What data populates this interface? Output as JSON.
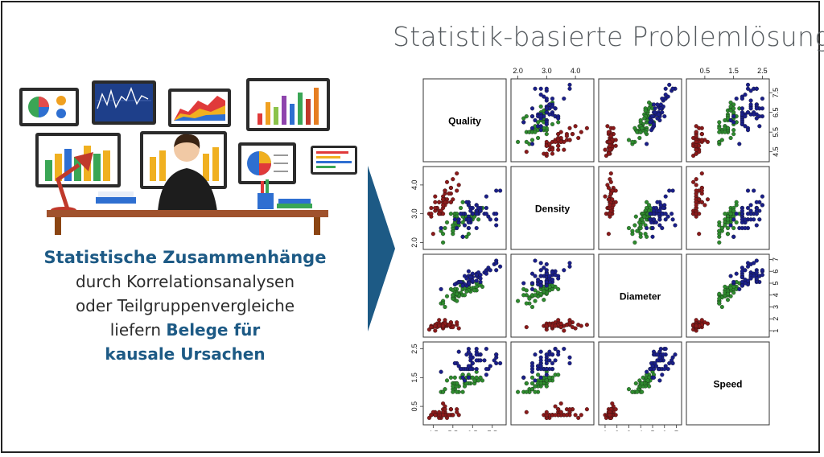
{
  "title": "Statistik-basierte Problemlösung",
  "left_text": {
    "line1": "Statistische Zusammenhänge",
    "line2": "durch Korrelationsanalysen",
    "line3": "oder Teilgruppenvergleiche",
    "line4_plain": "liefern ",
    "line4_bold": "Belege für",
    "line5": "kausale Ursachen"
  },
  "colors": {
    "accent": "#1d5a85",
    "arrow": "#1d5a85",
    "group_red": "#8b1a1a",
    "group_green": "#2e8b2e",
    "group_blue": "#1a1f8a"
  },
  "icons": {
    "illustration": "analyst-with-monitors-icon",
    "arrow": "chevron-right-arrow-icon"
  },
  "chart_data": {
    "type": "scatter",
    "variables": [
      "Quality",
      "Density",
      "Diameter",
      "Speed"
    ],
    "axis_ticks": {
      "Quality": [
        "4.5",
        "5.5",
        "6.5",
        "7.5"
      ],
      "Density": [
        "2.0",
        "3.0",
        "4.0"
      ],
      "Diameter": [
        "1",
        "2",
        "3",
        "4",
        "5",
        "6",
        "7"
      ],
      "Speed": [
        "0.5",
        "1.5",
        "2.5"
      ]
    },
    "groups": [
      {
        "color": "#8b1a1a",
        "points": [
          [
            5.1,
            3.5,
            1.4,
            0.2
          ],
          [
            4.9,
            3.0,
            1.4,
            0.2
          ],
          [
            4.7,
            3.2,
            1.3,
            0.2
          ],
          [
            4.6,
            3.1,
            1.5,
            0.2
          ],
          [
            5.0,
            3.6,
            1.4,
            0.2
          ],
          [
            5.4,
            3.9,
            1.7,
            0.4
          ],
          [
            4.6,
            3.4,
            1.4,
            0.3
          ],
          [
            5.0,
            3.4,
            1.5,
            0.2
          ],
          [
            4.4,
            2.9,
            1.4,
            0.2
          ],
          [
            4.9,
            3.1,
            1.5,
            0.1
          ],
          [
            5.4,
            3.7,
            1.5,
            0.2
          ],
          [
            4.8,
            3.4,
            1.6,
            0.2
          ],
          [
            4.8,
            3.0,
            1.4,
            0.1
          ],
          [
            4.3,
            3.0,
            1.1,
            0.1
          ],
          [
            5.8,
            4.0,
            1.2,
            0.2
          ],
          [
            5.7,
            4.4,
            1.5,
            0.4
          ],
          [
            5.4,
            3.9,
            1.3,
            0.4
          ],
          [
            5.1,
            3.5,
            1.4,
            0.3
          ],
          [
            5.7,
            3.8,
            1.7,
            0.3
          ],
          [
            5.1,
            3.8,
            1.5,
            0.3
          ],
          [
            5.4,
            3.4,
            1.7,
            0.2
          ],
          [
            5.1,
            3.7,
            1.5,
            0.4
          ],
          [
            4.6,
            3.6,
            1.0,
            0.2
          ],
          [
            5.1,
            3.3,
            1.7,
            0.5
          ],
          [
            4.8,
            3.4,
            1.9,
            0.2
          ],
          [
            5.0,
            3.0,
            1.6,
            0.2
          ],
          [
            5.0,
            3.4,
            1.6,
            0.4
          ],
          [
            5.2,
            3.5,
            1.5,
            0.2
          ],
          [
            5.2,
            3.4,
            1.4,
            0.2
          ],
          [
            4.7,
            3.2,
            1.6,
            0.2
          ],
          [
            4.8,
            3.1,
            1.6,
            0.2
          ],
          [
            5.4,
            3.4,
            1.5,
            0.4
          ],
          [
            5.2,
            4.1,
            1.5,
            0.1
          ],
          [
            5.5,
            4.2,
            1.4,
            0.2
          ],
          [
            4.9,
            3.1,
            1.5,
            0.2
          ],
          [
            5.0,
            3.2,
            1.2,
            0.2
          ],
          [
            5.5,
            3.5,
            1.3,
            0.2
          ],
          [
            4.4,
            3.0,
            1.3,
            0.2
          ],
          [
            5.1,
            3.4,
            1.5,
            0.2
          ],
          [
            5.0,
            3.5,
            1.3,
            0.3
          ],
          [
            4.5,
            2.3,
            1.3,
            0.3
          ],
          [
            4.4,
            3.2,
            1.3,
            0.2
          ],
          [
            5.0,
            3.5,
            1.6,
            0.6
          ],
          [
            5.1,
            3.8,
            1.9,
            0.4
          ],
          [
            4.8,
            3.0,
            1.4,
            0.3
          ],
          [
            5.1,
            3.8,
            1.6,
            0.2
          ],
          [
            4.6,
            3.2,
            1.4,
            0.2
          ],
          [
            5.3,
            3.7,
            1.5,
            0.2
          ],
          [
            5.0,
            3.3,
            1.4,
            0.2
          ]
        ]
      },
      {
        "color": "#2e8b2e",
        "points": [
          [
            7.0,
            3.2,
            4.7,
            1.4
          ],
          [
            6.4,
            3.2,
            4.5,
            1.5
          ],
          [
            6.9,
            3.1,
            4.9,
            1.5
          ],
          [
            5.5,
            2.3,
            4.0,
            1.3
          ],
          [
            6.5,
            2.8,
            4.6,
            1.5
          ],
          [
            5.7,
            2.8,
            4.5,
            1.3
          ],
          [
            6.3,
            3.3,
            4.7,
            1.6
          ],
          [
            4.9,
            2.4,
            3.3,
            1.0
          ],
          [
            6.6,
            2.9,
            4.6,
            1.3
          ],
          [
            5.2,
            2.7,
            3.9,
            1.4
          ],
          [
            5.0,
            2.0,
            3.5,
            1.0
          ],
          [
            5.9,
            3.0,
            4.2,
            1.5
          ],
          [
            6.0,
            2.2,
            4.0,
            1.0
          ],
          [
            6.1,
            2.9,
            4.7,
            1.4
          ],
          [
            5.6,
            2.9,
            3.6,
            1.3
          ],
          [
            6.7,
            3.1,
            4.4,
            1.4
          ],
          [
            5.6,
            3.0,
            4.5,
            1.5
          ],
          [
            5.8,
            2.7,
            4.1,
            1.0
          ],
          [
            6.2,
            2.2,
            4.5,
            1.5
          ],
          [
            5.6,
            2.5,
            3.9,
            1.1
          ],
          [
            5.9,
            3.2,
            4.8,
            1.8
          ],
          [
            6.1,
            2.8,
            4.0,
            1.3
          ],
          [
            6.3,
            2.5,
            4.9,
            1.5
          ],
          [
            6.1,
            2.8,
            4.7,
            1.2
          ],
          [
            6.4,
            2.9,
            4.3,
            1.3
          ],
          [
            6.6,
            3.0,
            4.4,
            1.4
          ],
          [
            6.8,
            2.8,
            4.8,
            1.4
          ],
          [
            6.7,
            3.0,
            5.0,
            1.7
          ],
          [
            6.0,
            2.9,
            4.5,
            1.5
          ],
          [
            5.7,
            2.6,
            3.5,
            1.0
          ],
          [
            5.5,
            2.4,
            3.8,
            1.1
          ],
          [
            5.5,
            2.4,
            3.7,
            1.0
          ],
          [
            5.8,
            2.7,
            3.9,
            1.2
          ],
          [
            6.0,
            2.7,
            5.1,
            1.6
          ],
          [
            5.4,
            3.0,
            4.5,
            1.5
          ],
          [
            6.0,
            3.4,
            4.5,
            1.6
          ],
          [
            6.7,
            3.1,
            4.7,
            1.5
          ],
          [
            6.3,
            2.3,
            4.4,
            1.3
          ],
          [
            5.6,
            3.0,
            4.1,
            1.3
          ],
          [
            5.5,
            2.5,
            4.0,
            1.3
          ],
          [
            5.5,
            2.6,
            4.4,
            1.2
          ],
          [
            6.1,
            3.0,
            4.6,
            1.4
          ],
          [
            5.8,
            2.6,
            4.0,
            1.2
          ],
          [
            5.0,
            2.3,
            3.3,
            1.0
          ],
          [
            5.6,
            2.7,
            4.2,
            1.3
          ],
          [
            5.7,
            3.0,
            4.2,
            1.2
          ],
          [
            5.7,
            2.9,
            4.2,
            1.3
          ],
          [
            6.2,
            2.9,
            4.3,
            1.3
          ],
          [
            5.1,
            2.5,
            3.0,
            1.1
          ],
          [
            5.7,
            2.8,
            4.1,
            1.3
          ]
        ]
      },
      {
        "color": "#1a1f8a",
        "points": [
          [
            6.3,
            3.3,
            6.0,
            2.5
          ],
          [
            5.8,
            2.7,
            5.1,
            1.9
          ],
          [
            7.1,
            3.0,
            5.9,
            2.1
          ],
          [
            6.3,
            2.9,
            5.6,
            1.8
          ],
          [
            6.5,
            3.0,
            5.8,
            2.2
          ],
          [
            7.6,
            3.0,
            6.6,
            2.1
          ],
          [
            4.9,
            2.5,
            4.5,
            1.7
          ],
          [
            7.3,
            2.9,
            6.3,
            1.8
          ],
          [
            6.7,
            2.5,
            5.8,
            1.8
          ],
          [
            7.2,
            3.6,
            6.1,
            2.5
          ],
          [
            6.5,
            3.2,
            5.1,
            2.0
          ],
          [
            6.4,
            2.7,
            5.3,
            1.9
          ],
          [
            6.8,
            3.0,
            5.5,
            2.1
          ],
          [
            5.7,
            2.5,
            5.0,
            2.0
          ],
          [
            5.8,
            2.8,
            5.1,
            2.4
          ],
          [
            6.4,
            3.2,
            5.3,
            2.3
          ],
          [
            6.5,
            3.0,
            5.5,
            1.8
          ],
          [
            7.7,
            3.8,
            6.7,
            2.2
          ],
          [
            7.7,
            2.6,
            6.9,
            2.3
          ],
          [
            6.0,
            2.2,
            5.0,
            1.5
          ],
          [
            6.9,
            3.2,
            5.7,
            2.3
          ],
          [
            5.6,
            2.8,
            4.9,
            2.0
          ],
          [
            7.7,
            2.8,
            6.7,
            2.0
          ],
          [
            6.3,
            2.7,
            4.9,
            1.8
          ],
          [
            6.7,
            3.3,
            5.7,
            2.1
          ],
          [
            7.2,
            3.2,
            6.0,
            1.8
          ],
          [
            6.2,
            2.8,
            4.8,
            1.8
          ],
          [
            6.1,
            3.0,
            4.9,
            1.8
          ],
          [
            6.4,
            2.8,
            5.6,
            2.1
          ],
          [
            7.2,
            3.0,
            5.8,
            1.6
          ],
          [
            7.4,
            2.8,
            6.1,
            1.9
          ],
          [
            7.9,
            3.8,
            6.4,
            2.0
          ],
          [
            6.4,
            2.8,
            5.6,
            2.2
          ],
          [
            6.3,
            2.8,
            5.1,
            1.5
          ],
          [
            6.1,
            2.6,
            5.6,
            1.4
          ],
          [
            7.7,
            3.0,
            6.1,
            2.3
          ],
          [
            6.3,
            3.4,
            5.6,
            2.4
          ],
          [
            6.4,
            3.1,
            5.5,
            1.8
          ],
          [
            6.0,
            3.0,
            4.8,
            1.8
          ],
          [
            6.9,
            3.1,
            5.4,
            2.1
          ],
          [
            6.7,
            3.1,
            5.6,
            2.4
          ],
          [
            6.9,
            3.1,
            5.1,
            2.3
          ],
          [
            6.8,
            3.2,
            5.9,
            2.3
          ],
          [
            6.7,
            3.3,
            5.7,
            2.5
          ],
          [
            6.7,
            3.0,
            5.2,
            2.3
          ],
          [
            6.3,
            2.5,
            5.0,
            1.9
          ],
          [
            6.5,
            3.0,
            5.2,
            2.0
          ],
          [
            6.2,
            3.4,
            5.4,
            2.3
          ],
          [
            5.9,
            3.0,
            5.1,
            1.8
          ]
        ]
      }
    ]
  }
}
